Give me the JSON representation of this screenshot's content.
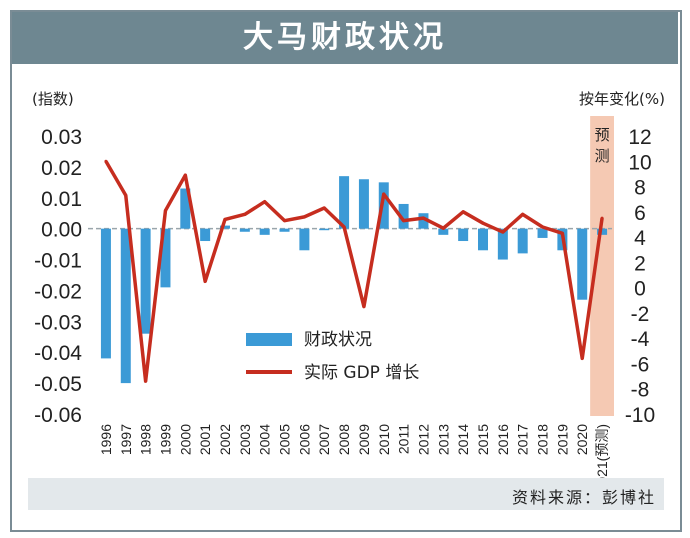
{
  "title": "大马财政状况",
  "left_unit": "(指数)",
  "right_unit": "按年变化(%)",
  "forecast_label": "预测",
  "source": "资料来源：彭博社",
  "colors": {
    "bar": "#3b9ad6",
    "line": "#c62d1f",
    "banner": "#6e8791",
    "forecast": "#f5c9b3"
  },
  "chart_data": {
    "type": "bar",
    "categories": [
      "1996",
      "1997",
      "1998",
      "1999",
      "2000",
      "2001",
      "2002",
      "2003",
      "2004",
      "2005",
      "2006",
      "2007",
      "2008",
      "2009",
      "2010",
      "2011",
      "2012",
      "2013",
      "2014",
      "2015",
      "2016",
      "2017",
      "2018",
      "2019",
      "2020",
      "2021(预测)"
    ],
    "left_ticks": [
      "0.03",
      "0.02",
      "0.01",
      "0.00",
      "-0.01",
      "-0.02",
      "-0.03",
      "-0.04",
      "-0.05",
      "-0.06"
    ],
    "right_ticks": [
      "12",
      "10",
      "8",
      "6",
      "4",
      "2",
      "0",
      "-2",
      "-4",
      "-6",
      "-8",
      "-10"
    ],
    "ylim_left": [
      -0.06,
      0.03
    ],
    "ylim_right": [
      -10,
      12
    ],
    "forecast_category": "2021(预测)",
    "series": [
      {
        "name": "财政状况",
        "type": "bar",
        "axis": "left",
        "values": [
          -0.042,
          -0.05,
          -0.034,
          -0.019,
          0.013,
          -0.004,
          0.001,
          -0.001,
          -0.002,
          -0.001,
          -0.007,
          -0.0005,
          0.017,
          0.016,
          0.015,
          0.008,
          0.005,
          -0.002,
          -0.004,
          -0.007,
          -0.01,
          -0.008,
          -0.003,
          -0.007,
          -0.023,
          -0.002
        ]
      },
      {
        "name": "实际 GDP 增长",
        "type": "line",
        "axis": "right",
        "values": [
          10.0,
          7.3,
          -7.4,
          6.1,
          8.9,
          0.5,
          5.4,
          5.8,
          6.8,
          5.3,
          5.6,
          6.3,
          4.8,
          -1.5,
          7.4,
          5.3,
          5.5,
          4.7,
          6.0,
          5.1,
          4.4,
          5.8,
          4.8,
          4.3,
          -5.6,
          5.5
        ]
      }
    ]
  }
}
